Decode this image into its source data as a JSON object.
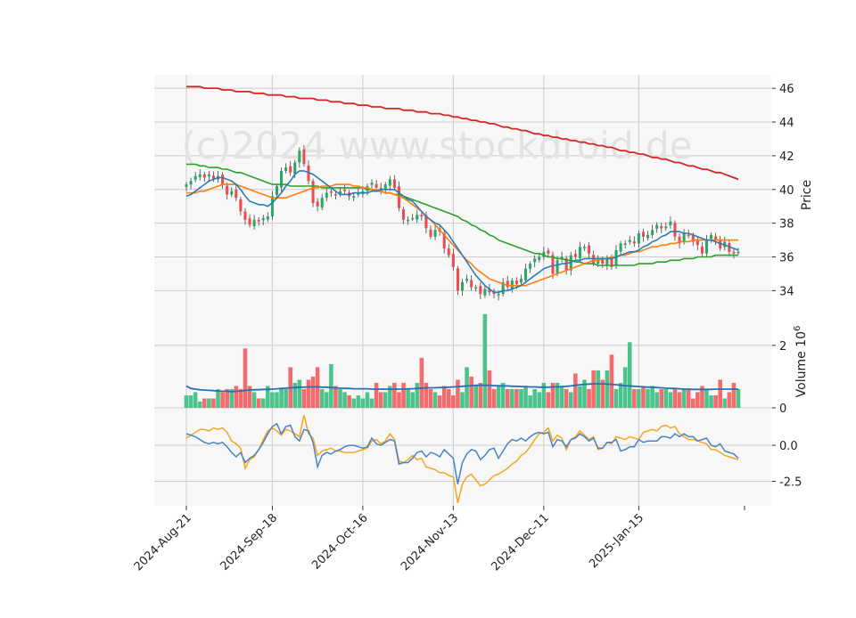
{
  "watermark": "(c)2024 www.stockdroid.de",
  "chart_data": {
    "type": "candlestick",
    "dates": [
      "2024-08-21",
      "2024-08-22",
      "2024-08-23",
      "2024-08-26",
      "2024-08-27",
      "2024-08-28",
      "2024-08-29",
      "2024-08-30",
      "2024-09-03",
      "2024-09-04",
      "2024-09-05",
      "2024-09-06",
      "2024-09-09",
      "2024-09-10",
      "2024-09-11",
      "2024-09-12",
      "2024-09-13",
      "2024-09-16",
      "2024-09-17",
      "2024-09-18",
      "2024-09-19",
      "2024-09-20",
      "2024-09-23",
      "2024-09-24",
      "2024-09-25",
      "2024-09-26",
      "2024-09-27",
      "2024-09-30",
      "2024-10-01",
      "2024-10-02",
      "2024-10-03",
      "2024-10-04",
      "2024-10-07",
      "2024-10-08",
      "2024-10-09",
      "2024-10-10",
      "2024-10-11",
      "2024-10-14",
      "2024-10-15",
      "2024-10-16",
      "2024-10-17",
      "2024-10-18",
      "2024-10-21",
      "2024-10-22",
      "2024-10-23",
      "2024-10-24",
      "2024-10-25",
      "2024-10-28",
      "2024-10-29",
      "2024-10-30",
      "2024-10-31",
      "2024-11-01",
      "2024-11-04",
      "2024-11-05",
      "2024-11-06",
      "2024-11-07",
      "2024-11-08",
      "2024-11-11",
      "2024-11-12",
      "2024-11-13",
      "2024-11-14",
      "2024-11-15",
      "2024-11-18",
      "2024-11-19",
      "2024-11-20",
      "2024-11-21",
      "2024-11-22",
      "2024-11-25",
      "2024-11-26",
      "2024-11-27",
      "2024-11-29",
      "2024-12-02",
      "2024-12-03",
      "2024-12-04",
      "2024-12-05",
      "2024-12-06",
      "2024-12-09",
      "2024-12-10",
      "2024-12-11",
      "2024-12-12",
      "2024-12-13",
      "2024-12-16",
      "2024-12-17",
      "2024-12-18",
      "2024-12-19",
      "2024-12-20",
      "2024-12-23",
      "2024-12-24",
      "2024-12-26",
      "2024-12-27",
      "2024-12-30",
      "2024-12-31",
      "2025-01-02",
      "2025-01-03",
      "2025-01-06",
      "2025-01-07",
      "2025-01-08",
      "2025-01-10",
      "2025-01-13",
      "2025-01-14",
      "2025-01-15",
      "2025-01-16",
      "2025-01-17",
      "2025-01-21",
      "2025-01-22",
      "2025-01-23",
      "2025-01-24",
      "2025-01-27",
      "2025-01-28",
      "2025-01-29",
      "2025-01-30",
      "2025-01-31",
      "2025-02-03",
      "2025-02-04",
      "2025-02-05",
      "2025-02-06",
      "2025-02-07",
      "2025-02-10",
      "2025-02-11",
      "2025-02-12",
      "2025-02-13",
      "2025-02-14",
      "2025-02-18"
    ],
    "x_tick_labels": [
      "2024-Aug-21",
      "2024-Sep-18",
      "2024-Oct-16",
      "2024-Nov-13",
      "2024-Dec-11",
      "2025-Jan-15"
    ],
    "x_tick_indices": [
      0,
      19,
      39,
      59,
      79,
      100
    ],
    "price_panel": {
      "ylabel": "Price",
      "yticks": [
        34,
        36,
        38,
        40,
        42,
        44,
        46
      ],
      "ylim": [
        32.7,
        46.8
      ],
      "close": [
        40.3,
        40.5,
        40.8,
        40.9,
        40.7,
        40.9,
        40.6,
        40.8,
        40.3,
        39.7,
        39.9,
        39.5,
        38.7,
        38.2,
        37.9,
        38.2,
        38.1,
        38.3,
        38.4,
        39.6,
        40.2,
        41.1,
        41.3,
        41.0,
        41.6,
        42.3,
        41.5,
        40.5,
        39.2,
        39.0,
        39.5,
        39.8,
        39.8,
        39.7,
        39.9,
        39.9,
        39.6,
        39.6,
        39.8,
        39.9,
        40.2,
        40.4,
        40.1,
        39.9,
        40.3,
        40.6,
        40.1,
        38.9,
        38.2,
        38.2,
        38.3,
        38.5,
        38.4,
        37.7,
        37.2,
        37.6,
        37.5,
        36.5,
        36.1,
        35.4,
        34.0,
        34.5,
        34.7,
        34.2,
        34.2,
        33.8,
        34.1,
        33.9,
        33.8,
        33.8,
        34.5,
        34.2,
        34.6,
        34.4,
        34.7,
        35.3,
        35.6,
        35.9,
        36.0,
        36.3,
        36.2,
        35.0,
        35.8,
        36.0,
        35.2,
        36.1,
        36.0,
        36.6,
        36.6,
        36.2,
        35.6,
        35.8,
        35.6,
        35.9,
        35.4,
        36.4,
        36.8,
        36.8,
        37.0,
        36.8,
        37.4,
        37.2,
        37.3,
        37.6,
        37.9,
        37.7,
        37.8,
        38.1,
        37.2,
        36.8,
        37.4,
        37.3,
        36.9,
        36.7,
        36.2,
        37.0,
        37.3,
        37.0,
        36.5,
        36.9,
        36.3,
        36.2,
        36.3
      ],
      "sma_fast_name": "",
      "sma_fast": [
        39.6,
        39.7,
        39.9,
        40.1,
        40.3,
        40.5,
        40.6,
        40.7,
        40.7,
        40.6,
        40.5,
        40.3,
        40.0,
        39.6,
        39.3,
        39.2,
        39.1,
        39.1,
        39.0,
        39.2,
        39.5,
        39.8,
        40.2,
        40.5,
        40.9,
        41.1,
        41.1,
        41.0,
        40.9,
        40.7,
        40.5,
        40.3,
        40.1,
        39.9,
        39.7,
        39.7,
        39.7,
        39.8,
        39.8,
        39.8,
        39.8,
        39.9,
        39.9,
        40.0,
        40.0,
        40.0,
        40.0,
        39.8,
        39.6,
        39.4,
        39.3,
        39.0,
        38.7,
        38.4,
        38.2,
        38.0,
        37.9,
        37.6,
        37.3,
        36.9,
        36.5,
        36.1,
        35.7,
        35.3,
        34.9,
        34.6,
        34.3,
        34.1,
        33.9,
        33.9,
        34.0,
        34.0,
        34.1,
        34.2,
        34.3,
        34.5,
        34.7,
        34.9,
        35.1,
        35.3,
        35.4,
        35.5,
        35.5,
        35.6,
        35.6,
        35.7,
        35.8,
        35.8,
        35.9,
        35.9,
        35.9,
        35.9,
        35.9,
        35.9,
        35.9,
        36.0,
        36.1,
        36.2,
        36.3,
        36.3,
        36.4,
        36.6,
        36.7,
        36.9,
        37.0,
        37.2,
        37.3,
        37.5,
        37.5,
        37.5,
        37.4,
        37.4,
        37.3,
        37.2,
        37.1,
        37.0,
        37.0,
        36.9,
        36.8,
        36.7,
        36.6,
        36.5,
        36.4
      ],
      "sma_mid_name": "",
      "sma_mid": [
        39.8,
        39.8,
        39.8,
        39.9,
        39.9,
        40.0,
        40.1,
        40.2,
        40.3,
        40.3,
        40.3,
        40.3,
        40.2,
        40.1,
        40.0,
        39.9,
        39.8,
        39.7,
        39.6,
        39.5,
        39.5,
        39.5,
        39.5,
        39.6,
        39.7,
        39.8,
        39.9,
        40.0,
        40.1,
        40.1,
        40.2,
        40.2,
        40.2,
        40.3,
        40.3,
        40.3,
        40.3,
        40.2,
        40.2,
        40.1,
        40.1,
        40.0,
        40.0,
        39.9,
        39.8,
        39.8,
        39.7,
        39.6,
        39.5,
        39.3,
        39.1,
        38.9,
        38.7,
        38.4,
        38.2,
        37.9,
        37.6,
        37.3,
        37.0,
        36.7,
        36.4,
        36.1,
        35.8,
        35.6,
        35.3,
        35.1,
        34.9,
        34.7,
        34.6,
        34.5,
        34.4,
        34.3,
        34.3,
        34.3,
        34.3,
        34.3,
        34.4,
        34.5,
        34.6,
        34.7,
        34.8,
        34.9,
        35.0,
        35.1,
        35.2,
        35.3,
        35.4,
        35.5,
        35.6,
        35.7,
        35.8,
        35.8,
        35.9,
        35.9,
        36.0,
        36.0,
        36.1,
        36.1,
        36.2,
        36.3,
        36.3,
        36.4,
        36.5,
        36.6,
        36.6,
        36.7,
        36.7,
        36.8,
        36.8,
        36.9,
        36.9,
        36.9,
        37.0,
        37.0,
        37.0,
        37.0,
        37.0,
        37.0,
        37.0,
        37.0,
        37.0,
        37.0,
        37.0
      ],
      "sma_slow_name": "",
      "sma_slow": [
        41.5,
        41.5,
        41.5,
        41.4,
        41.4,
        41.3,
        41.3,
        41.3,
        41.2,
        41.2,
        41.1,
        41.0,
        41.0,
        40.9,
        40.8,
        40.7,
        40.6,
        40.5,
        40.4,
        40.3,
        40.3,
        40.3,
        40.3,
        40.2,
        40.2,
        40.2,
        40.2,
        40.2,
        40.2,
        40.2,
        40.1,
        40.1,
        40.1,
        40.1,
        40.1,
        40.1,
        40.1,
        40.1,
        40.1,
        40.1,
        40.0,
        40.0,
        39.9,
        39.9,
        39.8,
        39.8,
        39.7,
        39.7,
        39.6,
        39.5,
        39.4,
        39.3,
        39.2,
        39.1,
        39.0,
        38.9,
        38.8,
        38.7,
        38.6,
        38.5,
        38.4,
        38.2,
        38.1,
        37.9,
        37.8,
        37.6,
        37.5,
        37.3,
        37.2,
        37.0,
        36.9,
        36.8,
        36.7,
        36.6,
        36.5,
        36.4,
        36.3,
        36.2,
        36.2,
        36.1,
        36.0,
        36.0,
        35.9,
        35.9,
        35.8,
        35.8,
        35.7,
        35.7,
        35.6,
        35.6,
        35.6,
        35.5,
        35.5,
        35.5,
        35.5,
        35.5,
        35.5,
        35.5,
        35.5,
        35.5,
        35.6,
        35.6,
        35.6,
        35.6,
        35.7,
        35.7,
        35.7,
        35.8,
        35.8,
        35.8,
        35.9,
        35.9,
        35.9,
        36.0,
        36.0,
        36.0,
        36.0,
        36.1,
        36.1,
        36.1,
        36.1,
        36.1,
        36.1
      ],
      "sma_long_name": "",
      "sma_long": [
        46.1,
        46.1,
        46.1,
        46.1,
        46.0,
        46.0,
        46.0,
        46.0,
        45.9,
        45.9,
        45.9,
        45.8,
        45.8,
        45.8,
        45.8,
        45.7,
        45.7,
        45.7,
        45.6,
        45.6,
        45.6,
        45.6,
        45.5,
        45.5,
        45.5,
        45.4,
        45.4,
        45.4,
        45.4,
        45.3,
        45.3,
        45.3,
        45.2,
        45.2,
        45.2,
        45.1,
        45.1,
        45.1,
        45.0,
        45.0,
        45.0,
        44.9,
        44.9,
        44.9,
        44.8,
        44.8,
        44.8,
        44.8,
        44.7,
        44.7,
        44.7,
        44.6,
        44.6,
        44.6,
        44.5,
        44.5,
        44.5,
        44.4,
        44.4,
        44.3,
        44.3,
        44.2,
        44.2,
        44.1,
        44.1,
        44.0,
        44.0,
        43.9,
        43.9,
        43.8,
        43.7,
        43.7,
        43.6,
        43.6,
        43.5,
        43.5,
        43.4,
        43.3,
        43.3,
        43.2,
        43.2,
        43.1,
        43.1,
        43.0,
        43.0,
        42.9,
        42.9,
        42.8,
        42.8,
        42.7,
        42.7,
        42.6,
        42.6,
        42.5,
        42.5,
        42.4,
        42.3,
        42.3,
        42.2,
        42.2,
        42.1,
        42.1,
        42.0,
        41.9,
        41.9,
        41.8,
        41.8,
        41.7,
        41.6,
        41.6,
        41.5,
        41.4,
        41.4,
        41.3,
        41.2,
        41.2,
        41.1,
        41.0,
        41.0,
        40.9,
        40.8,
        40.7,
        40.6
      ]
    },
    "volume_panel": {
      "ylabel": "Volume  10^6",
      "yticks": [
        0,
        2
      ],
      "ylim": [
        0,
        3.05
      ],
      "volume": [
        0.4,
        0.4,
        0.5,
        0.2,
        0.3,
        0.3,
        0.3,
        0.6,
        0.5,
        0.6,
        0.6,
        0.7,
        0.6,
        1.9,
        0.7,
        0.5,
        0.3,
        0.3,
        0.7,
        0.5,
        0.5,
        0.6,
        0.6,
        1.3,
        0.8,
        0.9,
        0.6,
        0.9,
        1.0,
        1.3,
        0.6,
        0.5,
        1.4,
        0.7,
        0.6,
        0.5,
        0.4,
        0.3,
        0.4,
        0.3,
        0.5,
        0.3,
        0.8,
        0.5,
        0.5,
        0.7,
        0.8,
        0.5,
        0.8,
        0.6,
        0.5,
        0.8,
        1.6,
        0.8,
        0.6,
        0.5,
        0.4,
        0.7,
        0.6,
        0.4,
        0.9,
        0.5,
        1.3,
        1.0,
        0.7,
        0.8,
        3.0,
        1.2,
        0.6,
        0.7,
        0.8,
        0.6,
        0.6,
        0.6,
        0.6,
        0.7,
        0.4,
        0.6,
        0.5,
        0.8,
        0.5,
        0.8,
        0.8,
        0.7,
        0.6,
        0.5,
        1.1,
        0.7,
        0.9,
        0.6,
        1.2,
        1.2,
        0.9,
        1.2,
        1.7,
        0.6,
        0.8,
        1.3,
        2.1,
        0.6,
        0.6,
        0.7,
        0.6,
        0.7,
        0.5,
        0.6,
        0.6,
        0.5,
        0.6,
        0.5,
        0.6,
        0.6,
        0.3,
        0.5,
        0.7,
        0.6,
        0.4,
        0.4,
        0.9,
        0.3,
        0.5,
        0.8,
        0.6
      ],
      "avg": [
        0.7,
        0.62,
        0.6,
        0.58,
        0.57,
        0.56,
        0.55,
        0.54,
        0.53,
        0.53,
        0.52,
        0.53,
        0.54,
        0.56,
        0.57,
        0.58,
        0.58,
        0.59,
        0.59,
        0.6,
        0.61,
        0.62,
        0.63,
        0.64,
        0.65,
        0.66,
        0.66,
        0.67,
        0.67,
        0.67,
        0.66,
        0.66,
        0.65,
        0.64,
        0.63,
        0.62,
        0.62,
        0.61,
        0.61,
        0.61,
        0.61,
        0.6,
        0.6,
        0.6,
        0.6,
        0.6,
        0.6,
        0.6,
        0.6,
        0.61,
        0.61,
        0.62,
        0.63,
        0.64,
        0.64,
        0.64,
        0.65,
        0.65,
        0.66,
        0.67,
        0.68,
        0.69,
        0.7,
        0.71,
        0.72,
        0.72,
        0.72,
        0.72,
        0.71,
        0.71,
        0.7,
        0.7,
        0.69,
        0.69,
        0.68,
        0.68,
        0.67,
        0.67,
        0.66,
        0.66,
        0.66,
        0.67,
        0.67,
        0.68,
        0.69,
        0.7,
        0.72,
        0.74,
        0.75,
        0.76,
        0.77,
        0.77,
        0.77,
        0.76,
        0.75,
        0.74,
        0.72,
        0.71,
        0.7,
        0.69,
        0.68,
        0.67,
        0.66,
        0.66,
        0.65,
        0.64,
        0.63,
        0.62,
        0.62,
        0.61,
        0.6,
        0.6,
        0.59,
        0.59,
        0.59,
        0.59,
        0.59,
        0.6,
        0.6,
        0.6,
        0.6,
        0.6,
        0.6
      ]
    },
    "indicator_panel": {
      "yticks": [
        -2.5,
        0.0
      ],
      "ylim": [
        -4.2,
        2.6
      ],
      "line_blue": [
        0.8,
        0.7,
        0.6,
        0.4,
        0.2,
        0.1,
        0.2,
        0.1,
        0.2,
        -0.1,
        -0.5,
        -0.8,
        -0.5,
        -1.2,
        -0.9,
        -0.7,
        -0.3,
        0.2,
        0.8,
        1.3,
        1.5,
        0.8,
        1.3,
        1.4,
        0.6,
        0.3,
        1.1,
        1.0,
        0.2,
        -1.5,
        -0.7,
        -0.5,
        -0.6,
        -0.4,
        -0.3,
        -0.1,
        0.0,
        0.0,
        -0.1,
        -0.2,
        -0.1,
        0.5,
        0.1,
        0.0,
        0.2,
        0.4,
        0.3,
        -1.3,
        -1.2,
        -1.2,
        -0.9,
        -0.5,
        -0.4,
        -0.8,
        -0.5,
        -0.6,
        -0.8,
        -0.3,
        -0.6,
        -0.9,
        -2.7,
        -1.2,
        -0.6,
        -0.3,
        -0.4,
        -1.0,
        -0.7,
        -0.3,
        -0.2,
        -0.9,
        -0.4,
        0.1,
        0.4,
        0.3,
        0.5,
        0.3,
        0.6,
        0.8,
        0.9,
        0.8,
        0.9,
        -0.1,
        0.4,
        0.3,
        -0.1,
        0.4,
        0.5,
        0.8,
        0.6,
        0.3,
        0.5,
        -0.2,
        -0.2,
        0.2,
        0.2,
        0.4,
        -0.4,
        -0.3,
        -0.1,
        -0.1,
        0.4,
        0.2,
        0.3,
        0.3,
        0.3,
        0.6,
        0.6,
        0.5,
        0.8,
        0.6,
        0.8,
        0.6,
        0.6,
        0.3,
        0.4,
        0.5,
        0.0,
        -0.1,
        0.1,
        -0.4,
        -0.5,
        -0.6,
        -0.9
      ],
      "line_orange": [
        0.5,
        0.7,
        0.9,
        1.1,
        1.1,
        1.0,
        1.2,
        1.1,
        1.2,
        0.9,
        0.3,
        0.1,
        -0.2,
        -1.6,
        -1.0,
        -0.8,
        -0.3,
        0.4,
        1.0,
        1.2,
        1.0,
        0.7,
        1.1,
        1.0,
        0.8,
        0.6,
        2.1,
        0.8,
        0.5,
        -0.7,
        -0.4,
        -0.3,
        -0.2,
        -0.4,
        -0.4,
        -0.5,
        -0.5,
        -0.5,
        -0.4,
        -0.3,
        -0.2,
        0.3,
        0.4,
        0.1,
        0.3,
        0.8,
        0.4,
        -1.1,
        -1.2,
        -1.0,
        -0.7,
        -1.0,
        -0.9,
        -1.5,
        -1.6,
        -1.7,
        -1.9,
        -1.9,
        -2.1,
        -2.2,
        -4.0,
        -2.7,
        -2.2,
        -2.0,
        -2.4,
        -2.8,
        -2.7,
        -2.4,
        -2.1,
        -2.0,
        -1.8,
        -1.6,
        -1.3,
        -1.1,
        -0.7,
        -0.5,
        -0.1,
        0.4,
        0.8,
        0.9,
        1.2,
        0.3,
        0.7,
        0.5,
        -0.3,
        0.4,
        0.6,
        1.0,
        0.7,
        0.4,
        0.6,
        -0.3,
        -0.2,
        0.2,
        0.1,
        0.6,
        0.5,
        0.4,
        0.6,
        0.5,
        0.4,
        0.9,
        1.0,
        1.1,
        1.0,
        1.3,
        1.4,
        1.2,
        1.3,
        0.8,
        0.6,
        0.4,
        0.4,
        0.3,
        0.2,
        0.1,
        -0.3,
        -0.3,
        -0.5,
        -0.7,
        -0.8,
        -0.9,
        -1.0
      ]
    },
    "colors": {
      "up": "#26a869",
      "down": "#f04a4f",
      "up_volume": "#4bc38a",
      "down_volume": "#f26b6d",
      "sma_fast": "#2c7bb6",
      "sma_mid": "#ff7f0e",
      "sma_slow": "#2ca02c",
      "sma_long": "#d62728",
      "volume_avg": "#2c6fb0",
      "ind_blue": "#4a84c0",
      "ind_orange": "#f5a623"
    }
  }
}
